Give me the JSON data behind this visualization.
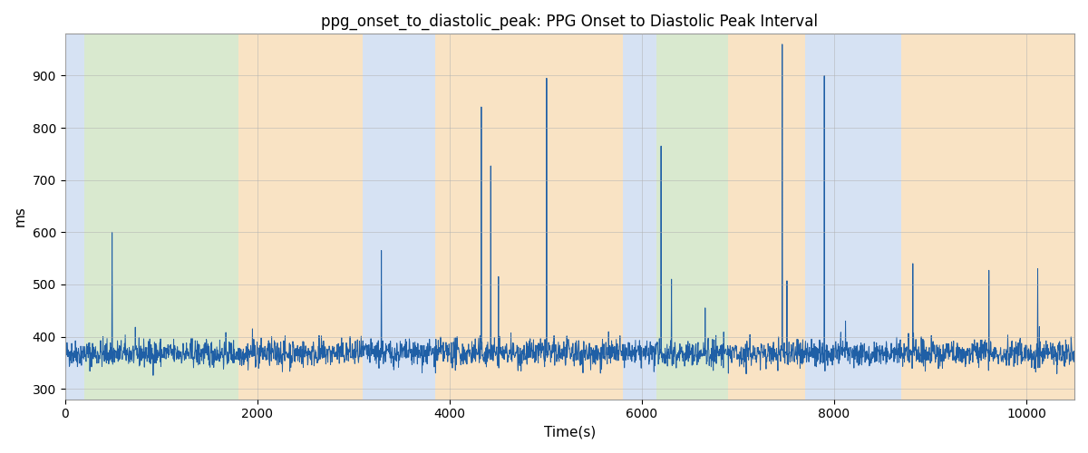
{
  "title": "ppg_onset_to_diastolic_peak: PPG Onset to Diastolic Peak Interval",
  "xlabel": "Time(s)",
  "ylabel": "ms",
  "xlim": [
    0,
    10500
  ],
  "ylim": [
    280,
    980
  ],
  "yticks": [
    300,
    400,
    500,
    600,
    700,
    800,
    900
  ],
  "xticks": [
    0,
    2000,
    4000,
    6000,
    8000,
    10000
  ],
  "line_color": "#1f5fa6",
  "line_width": 0.7,
  "bands": [
    {
      "xmin": 0,
      "xmax": 200,
      "color": "#aec6e8",
      "alpha": 0.5
    },
    {
      "xmin": 200,
      "xmax": 1800,
      "color": "#b5d5a0",
      "alpha": 0.5
    },
    {
      "xmin": 1800,
      "xmax": 3100,
      "color": "#f5c98a",
      "alpha": 0.5
    },
    {
      "xmin": 3100,
      "xmax": 3850,
      "color": "#aec6e8",
      "alpha": 0.5
    },
    {
      "xmin": 3850,
      "xmax": 5800,
      "color": "#f5c98a",
      "alpha": 0.5
    },
    {
      "xmin": 5800,
      "xmax": 6150,
      "color": "#aec6e8",
      "alpha": 0.5
    },
    {
      "xmin": 6150,
      "xmax": 6900,
      "color": "#b5d5a0",
      "alpha": 0.5
    },
    {
      "xmin": 6900,
      "xmax": 7700,
      "color": "#f5c98a",
      "alpha": 0.5
    },
    {
      "xmin": 7700,
      "xmax": 8700,
      "color": "#aec6e8",
      "alpha": 0.5
    },
    {
      "xmin": 8700,
      "xmax": 10500,
      "color": "#f5c98a",
      "alpha": 0.5
    }
  ],
  "seed": 42,
  "n_points": 3000,
  "base_mean": 368,
  "base_std": 13,
  "spike_positions": [
    490,
    1950,
    3290,
    4330,
    4430,
    4510,
    4640,
    5010,
    6200,
    6310,
    6660,
    7460,
    7510,
    7900,
    8120,
    8820,
    9610,
    10120
  ],
  "spike_heights": [
    600,
    415,
    565,
    840,
    727,
    515,
    407,
    895,
    765,
    510,
    455,
    960,
    507,
    900,
    430,
    540,
    527,
    530
  ],
  "figsize": [
    12,
    5
  ],
  "dpi": 100,
  "title_fontsize": 12,
  "grid_color": "#b0b0b0",
  "grid_alpha": 0.7,
  "grid_linewidth": 0.5
}
